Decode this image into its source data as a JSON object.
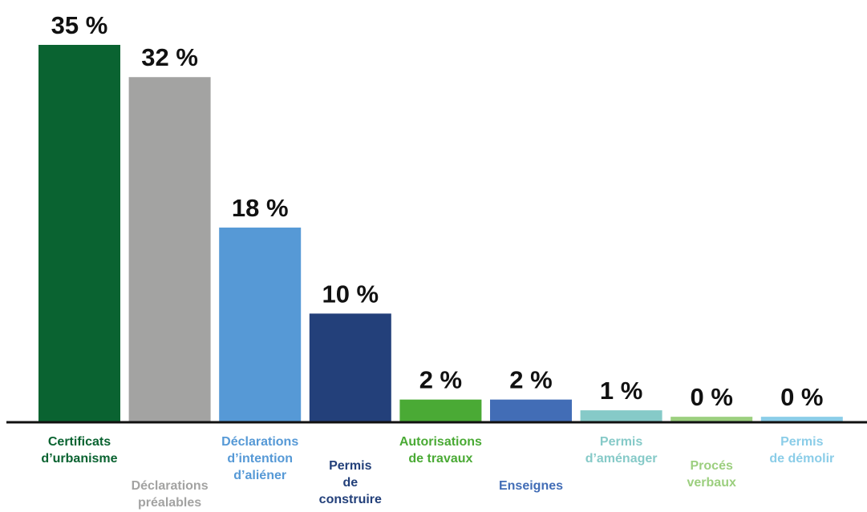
{
  "chart_data": {
    "type": "bar",
    "categories": [
      [
        "Certificats",
        "d’urbanisme"
      ],
      [
        "Déclarations",
        "préalables"
      ],
      [
        "Déclarations",
        "d’intention",
        "d’aliéner"
      ],
      [
        "Permis",
        "de",
        "construire"
      ],
      [
        "Autorisations",
        "de travaux"
      ],
      [
        "Enseignes"
      ],
      [
        "Permis",
        "d’aménager"
      ],
      [
        "Procés",
        "verbaux"
      ],
      [
        "Permis",
        "de démolir"
      ]
    ],
    "values": [
      35,
      32,
      18,
      10,
      2,
      2,
      1,
      0.4,
      0.4
    ],
    "value_labels": [
      "35 %",
      "32 %",
      "18 %",
      "10 %",
      "2 %",
      "2 %",
      "1 %",
      "0 %",
      "0 %"
    ],
    "colors": [
      "#0a6331",
      "#a3a3a2",
      "#5699d6",
      "#23407a",
      "#4aaa35",
      "#426db6",
      "#86cac8",
      "#9ccf7f",
      "#8bcde8"
    ]
  }
}
